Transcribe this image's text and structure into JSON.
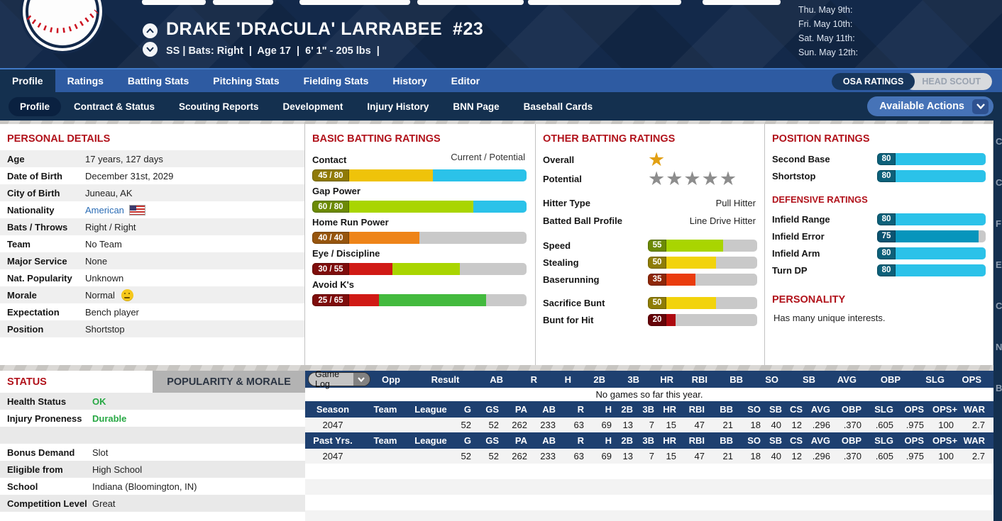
{
  "header": {
    "name": "DRAKE 'DRACULA' LARRABEE  #23",
    "info": "SS | Bats: Right  |  Age 17  |  6' 1\" - 205 lbs  |",
    "schedule": [
      "Thu. May 9th:",
      "Fri. May 10th:",
      "Sat. May 11th:",
      "Sun. May 12th:"
    ]
  },
  "nav": {
    "main_tabs": [
      "Profile",
      "Ratings",
      "Batting Stats",
      "Pitching Stats",
      "Fielding Stats",
      "History",
      "Editor"
    ],
    "active_main_tab": "Profile",
    "scout_toggle": {
      "selected": "OSA RATINGS",
      "other": "HEAD SCOUT"
    },
    "sub_tabs": [
      "Profile",
      "Contract & Status",
      "Scouting Reports",
      "Development",
      "Injury History",
      "BNN Page",
      "Baseball Cards"
    ],
    "active_sub_tab": "Profile",
    "actions_button": "Available Actions"
  },
  "personal_details": {
    "title": "PERSONAL DETAILS",
    "rows": [
      {
        "label": "Age",
        "value": "17 years, 127 days"
      },
      {
        "label": "Date of Birth",
        "value": "December 31st, 2029"
      },
      {
        "label": "City of Birth",
        "value": "Juneau, AK"
      },
      {
        "label": "Nationality",
        "value": "American",
        "link": true,
        "flag": "usa-flag"
      },
      {
        "label": "Bats / Throws",
        "value": "Right / Right"
      },
      {
        "label": "Team",
        "value": "No Team"
      },
      {
        "label": "Major Service",
        "value": "None"
      },
      {
        "label": "Nat. Popularity",
        "value": "Unknown"
      },
      {
        "label": "Morale",
        "value": "Normal",
        "emoji": "neutral-face"
      },
      {
        "label": "Expectation",
        "value": "Bench player"
      },
      {
        "label": "Position",
        "value": "Shortstop"
      }
    ]
  },
  "basic_batting": {
    "title": "BASIC BATTING RATINGS",
    "scale_note": "Current / Potential",
    "max": 80,
    "bars": [
      {
        "label": "Contact",
        "current": 45,
        "potential": 80,
        "display": "45 / 80",
        "current_color": "#efc30a",
        "potential_color": "#2bc2e9",
        "chip_color": "#8f7a07"
      },
      {
        "label": "Gap Power",
        "current": 60,
        "potential": 80,
        "display": "60 / 80",
        "current_color": "#a9d501",
        "potential_color": "#2bc2e9",
        "chip_color": "#6c8a05"
      },
      {
        "label": "Home Run Power",
        "current": 40,
        "potential": 40,
        "display": "40 / 40",
        "current_color": "#ee8419",
        "potential_color": "#ee8419",
        "chip_color": "#96550e"
      },
      {
        "label": "Eye / Discipline",
        "current": 30,
        "potential": 55,
        "display": "30 / 55",
        "current_color": "#d01a15",
        "potential_color": "#a9d501",
        "chip_color": "#7e0d0c"
      },
      {
        "label": "Avoid K's",
        "current": 25,
        "potential": 65,
        "display": "25 / 65",
        "current_color": "#d01a15",
        "potential_color": "#43ba3e",
        "chip_color": "#7e0d0c"
      }
    ]
  },
  "other_batting": {
    "title": "OTHER BATTING RATINGS",
    "overall": {
      "label": "Overall",
      "stars": 1,
      "color": "#e2a013"
    },
    "potential": {
      "label": "Potential",
      "stars": 5,
      "color": "#8d8d8d"
    },
    "info_rows": [
      {
        "label": "Hitter Type",
        "value": "Pull Hitter"
      },
      {
        "label": "Batted Ball Profile",
        "value": "Line Drive Hitter"
      }
    ],
    "run_bars": [
      {
        "label": "Speed",
        "value": 55,
        "color": "#a9d501",
        "chip_color": "#6c8a05"
      },
      {
        "label": "Stealing",
        "value": 50,
        "color": "#f2d30c",
        "chip_color": "#8f7d07"
      },
      {
        "label": "Baserunning",
        "value": 35,
        "color": "#ea3c0e",
        "chip_color": "#8e2708"
      }
    ],
    "bunt_bars": [
      {
        "label": "Sacrifice Bunt",
        "value": 50,
        "color": "#f2d30c",
        "chip_color": "#8f7d07"
      },
      {
        "label": "Bunt for Hit",
        "value": 20,
        "color": "#ad0a10",
        "chip_color": "#660408"
      }
    ]
  },
  "position_ratings": {
    "title": "POSITION RATINGS",
    "bars": [
      {
        "label": "Second Base",
        "value": 80,
        "color": "#2bc2e9",
        "chip_color": "#0d6079"
      },
      {
        "label": "Shortstop",
        "value": 80,
        "color": "#2bc2e9",
        "chip_color": "#0d6079"
      }
    ],
    "defensive_title": "DEFENSIVE RATINGS",
    "defensive_bars": [
      {
        "label": "Infield Range",
        "value": 80,
        "color": "#2bc2e9",
        "chip_color": "#0d6079"
      },
      {
        "label": "Infield Error",
        "value": 75,
        "color": "#0795bc",
        "chip_color": "#0b5370"
      },
      {
        "label": "Infield Arm",
        "value": 80,
        "color": "#2bc2e9",
        "chip_color": "#0d6079"
      },
      {
        "label": "Turn DP",
        "value": 80,
        "color": "#2bc2e9",
        "chip_color": "#0d6079"
      }
    ]
  },
  "personality": {
    "title": "PERSONALITY",
    "text": "Has many unique interests."
  },
  "status_panel": {
    "active_tab": "STATUS",
    "inactive_tab": "POPULARITY & MORALE",
    "rows": [
      {
        "label": "Health Status",
        "value": "OK",
        "highlight": "#27a844"
      },
      {
        "label": "Injury Proneness",
        "value": "Durable",
        "highlight": "#27a844"
      },
      {
        "label": "",
        "value": ""
      },
      {
        "label": "Bonus Demand",
        "value": "Slot"
      },
      {
        "label": "Eligible from",
        "value": "High School"
      },
      {
        "label": "School",
        "value": "Indiana (Bloomington, IN)"
      },
      {
        "label": "Competition Level",
        "value": "Great"
      }
    ]
  },
  "game_log": {
    "selector": "Game Log",
    "columns": [
      "Opp",
      "Result",
      "AB",
      "R",
      "H",
      "2B",
      "3B",
      "HR",
      "RBI",
      "BB",
      "SO",
      "SB",
      "AVG",
      "OBP",
      "SLG",
      "OPS"
    ],
    "empty_message": "No games so far this year."
  },
  "season_stats": {
    "columns": [
      "Season",
      "Team",
      "League",
      "G",
      "GS",
      "PA",
      "AB",
      "R",
      "H",
      "2B",
      "3B",
      "HR",
      "RBI",
      "BB",
      "SO",
      "SB",
      "CS",
      "AVG",
      "OBP",
      "SLG",
      "OPS",
      "OPS+",
      "WAR"
    ],
    "rows": [
      [
        "2047",
        "",
        "",
        "52",
        "52",
        "262",
        "233",
        "63",
        "69",
        "13",
        "7",
        "15",
        "47",
        "21",
        "18",
        "40",
        "12",
        ".296",
        ".370",
        ".605",
        ".975",
        "100",
        "2.7"
      ]
    ]
  },
  "past_stats": {
    "columns": [
      "Past Yrs.",
      "Team",
      "League",
      "G",
      "GS",
      "PA",
      "AB",
      "R",
      "H",
      "2B",
      "3B",
      "HR",
      "RBI",
      "BB",
      "SO",
      "SB",
      "CS",
      "AVG",
      "OBP",
      "SLG",
      "OPS",
      "OPS+",
      "WAR"
    ],
    "rows": [
      [
        "2047",
        "",
        "",
        "52",
        "52",
        "262",
        "233",
        "63",
        "69",
        "13",
        "7",
        "15",
        "47",
        "21",
        "18",
        "40",
        "12",
        ".296",
        ".370",
        ".605",
        ".975",
        "100",
        "2.7"
      ]
    ]
  },
  "edge_fragments": [
    "C",
    "C",
    "F",
    "E",
    "C",
    "N",
    "B"
  ]
}
